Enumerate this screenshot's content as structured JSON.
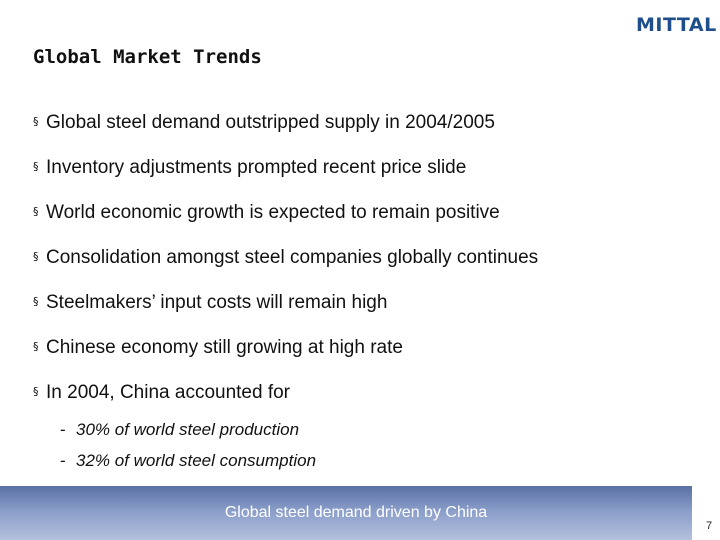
{
  "logo": {
    "text": "MITTAL"
  },
  "title": "Global Market Trends",
  "bullets": [
    "Global steel demand outstripped supply in 2004/2005",
    "Inventory adjustments prompted recent price slide",
    "World economic growth is expected to remain positive",
    "Consolidation amongst steel companies globally continues",
    "Steelmakers’ input costs will remain high",
    "Chinese economy still growing at high rate",
    "In 2004, China accounted for"
  ],
  "sub_bullets": [
    "30% of world steel production",
    "32% of world steel consumption"
  ],
  "marker": "§",
  "dash": "-",
  "footer": {
    "text": "Global steel demand driven by China"
  },
  "page_number": "7",
  "colors": {
    "logo": "#1f4e8c",
    "footer_bar": "#8a9dc9"
  }
}
